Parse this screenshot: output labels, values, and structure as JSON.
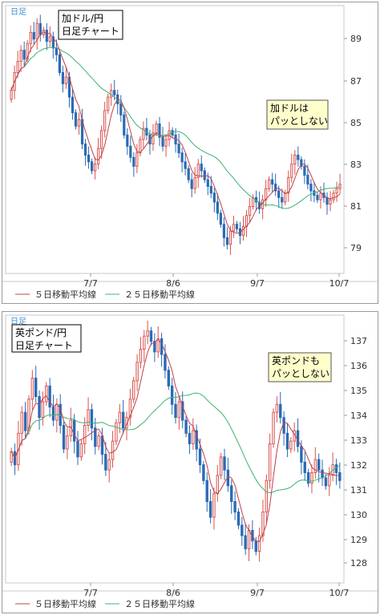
{
  "charts": [
    {
      "frequency": "日足",
      "title_lines": [
        "加ドル/円",
        "日足チャート"
      ],
      "callout_lines": [
        "加ドルは",
        "パッとしない"
      ],
      "ticks_y": [
        "89",
        "87",
        "85",
        "83",
        "81",
        "79"
      ],
      "ticks_x": [
        "7/7",
        "8/6",
        "9/7",
        "10/7"
      ],
      "legend": [
        "５日移動平均線",
        "２５日移動平均線"
      ],
      "colors": {
        "up": "#d9534f",
        "down": "#2a6bb5",
        "ma5": "#c0404a",
        "ma25": "#3cb371"
      }
    },
    {
      "frequency": "日足",
      "title_lines": [
        "英ポンド/円",
        "日足チャート"
      ],
      "callout_lines": [
        "英ポンドも",
        "パッとしない"
      ],
      "ticks_y": [
        "137",
        "136",
        "135",
        "134",
        "133",
        "132",
        "131",
        "130",
        "129",
        "128"
      ],
      "ticks_x": [
        "7/7",
        "8/6",
        "9/7",
        "10/7"
      ],
      "legend": [
        "５日移動平均線",
        "２５日移動平均線"
      ],
      "colors": {
        "up": "#d9534f",
        "down": "#2a6bb5",
        "ma5": "#c0404a",
        "ma25": "#3cb371"
      }
    }
  ],
  "chart_data": [
    {
      "type": "candlestick",
      "title": "加ドル/円 日足チャート",
      "x_ticks": [
        "7/7",
        "8/6",
        "9/7",
        "10/7"
      ],
      "ylim": [
        78,
        90
      ],
      "close": [
        86.2,
        87.0,
        87.5,
        88.0,
        87.6,
        88.3,
        88.8,
        88.5,
        89.2,
        88.7,
        88.9,
        88.4,
        88.6,
        88.1,
        87.8,
        87.0,
        86.5,
        86.8,
        85.9,
        85.2,
        84.6,
        84.9,
        83.8,
        83.3,
        83.0,
        82.6,
        82.9,
        83.6,
        84.4,
        85.3,
        85.9,
        86.2,
        86.0,
        85.6,
        85.1,
        84.2,
        83.7,
        83.2,
        82.8,
        83.4,
        84.0,
        84.5,
        84.2,
        83.8,
        84.3,
        84.7,
        84.1,
        83.7,
        84.0,
        84.4,
        84.2,
        83.8,
        83.4,
        83.0,
        82.7,
        82.2,
        81.8,
        82.3,
        82.9,
        82.6,
        82.2,
        81.9,
        81.6,
        81.2,
        80.7,
        80.2,
        79.6,
        79.3,
        79.9,
        80.2,
        80.0,
        79.7,
        80.1,
        80.6,
        81.0,
        81.4,
        81.2,
        80.9,
        81.3,
        81.8,
        82.2,
        82.0,
        81.7,
        81.4,
        81.2,
        81.6,
        82.3,
        82.9,
        83.3,
        83.1,
        82.8,
        82.4,
        82.0,
        81.7,
        81.5,
        81.3,
        81.6,
        81.4,
        81.1,
        81.3,
        81.6,
        81.8,
        82.0
      ],
      "ma5_shown": true,
      "ma25_shown": true
    },
    {
      "type": "candlestick",
      "title": "英ポンド/円 日足チャート",
      "x_ticks": [
        "7/7",
        "8/6",
        "9/7",
        "10/7"
      ],
      "ylim": [
        127.5,
        137.7
      ],
      "close": [
        132.5,
        132.0,
        133.2,
        134.0,
        133.3,
        134.5,
        135.3,
        134.6,
        133.8,
        134.4,
        135.0,
        134.2,
        133.7,
        134.3,
        133.5,
        132.6,
        133.1,
        133.7,
        132.9,
        132.3,
        132.8,
        133.5,
        134.1,
        133.4,
        132.7,
        133.1,
        132.4,
        131.8,
        132.2,
        132.9,
        133.6,
        134.0,
        133.4,
        133.8,
        134.5,
        135.2,
        135.9,
        136.4,
        136.9,
        137.1,
        136.7,
        136.3,
        136.8,
        136.2,
        135.6,
        135.0,
        134.3,
        133.8,
        134.4,
        133.7,
        133.2,
        132.8,
        133.3,
        132.6,
        132.0,
        131.4,
        130.6,
        130.0,
        130.9,
        131.6,
        132.3,
        131.8,
        131.2,
        130.6,
        130.2,
        129.7,
        129.3,
        128.8,
        129.5,
        129.1,
        128.7,
        129.3,
        130.2,
        131.4,
        132.8,
        134.0,
        134.3,
        133.8,
        133.2,
        132.6,
        132.9,
        133.3,
        132.7,
        132.1,
        131.7,
        131.3,
        131.7,
        132.2,
        131.8,
        131.5,
        131.2,
        131.6,
        132.0,
        131.7,
        131.4
      ],
      "ma5_shown": true,
      "ma25_shown": true
    }
  ]
}
